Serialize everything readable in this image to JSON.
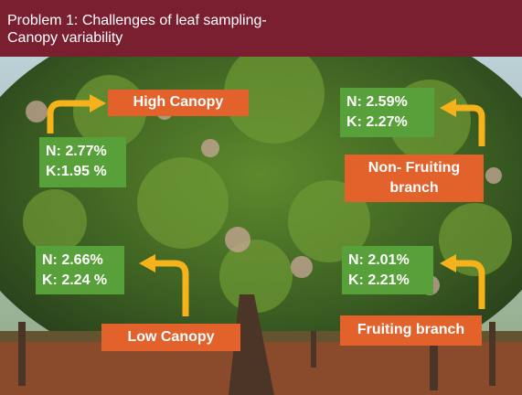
{
  "header": {
    "title_lines": [
      "Problem 1: Challenges of leaf sampling-",
      "Canopy variability"
    ]
  },
  "labels": {
    "high_canopy": {
      "name": "High Canopy",
      "values": [
        "N: 2.77%",
        "K:1.95 %"
      ]
    },
    "non_fruiting_branch": {
      "name_lines": [
        "Non- Fruiting",
        "branch"
      ],
      "values": [
        "N: 2.59%",
        "K: 2.27%"
      ]
    },
    "low_canopy": {
      "name": "Low Canopy",
      "values": [
        "N: 2.66%",
        "K: 2.24 %"
      ]
    },
    "fruiting_branch": {
      "name": "Fruiting branch",
      "values": [
        "N: 2.01%",
        "K: 2.21%"
      ]
    }
  }
}
